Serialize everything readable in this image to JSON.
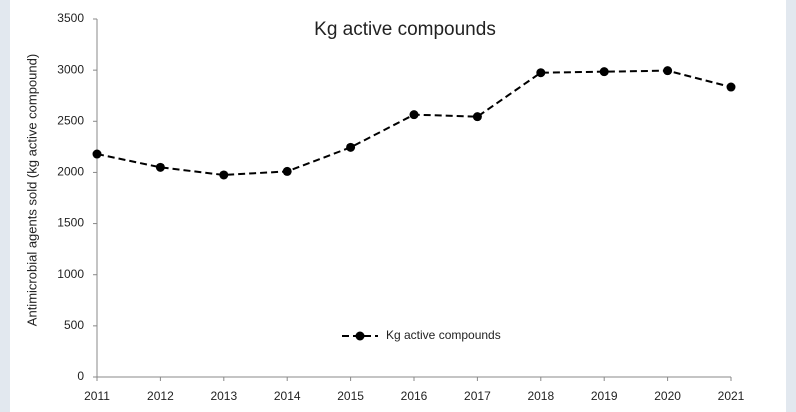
{
  "chart_data": {
    "type": "line",
    "title": "Kg active compounds",
    "ylabel": "Antimicrobial agents sold (kg active compound)",
    "x": [
      2011,
      2012,
      2013,
      2014,
      2015,
      2016,
      2017,
      2018,
      2019,
      2020,
      2021
    ],
    "series": [
      {
        "name": "Kg active compounds",
        "color": "#000000",
        "values": [
          2180,
          2050,
          1975,
          2010,
          2245,
          2565,
          2545,
          2975,
          2985,
          2995,
          2835
        ]
      }
    ],
    "xlim": [
      2011,
      2021
    ],
    "xticks": [
      2011,
      2012,
      2013,
      2014,
      2015,
      2016,
      2017,
      2018,
      2019,
      2020,
      2021
    ],
    "ylim": [
      0,
      3500
    ],
    "yticks": [
      0,
      500,
      1000,
      1500,
      2000,
      2500,
      3000,
      3500
    ],
    "grid": false,
    "legend": "bottom"
  }
}
